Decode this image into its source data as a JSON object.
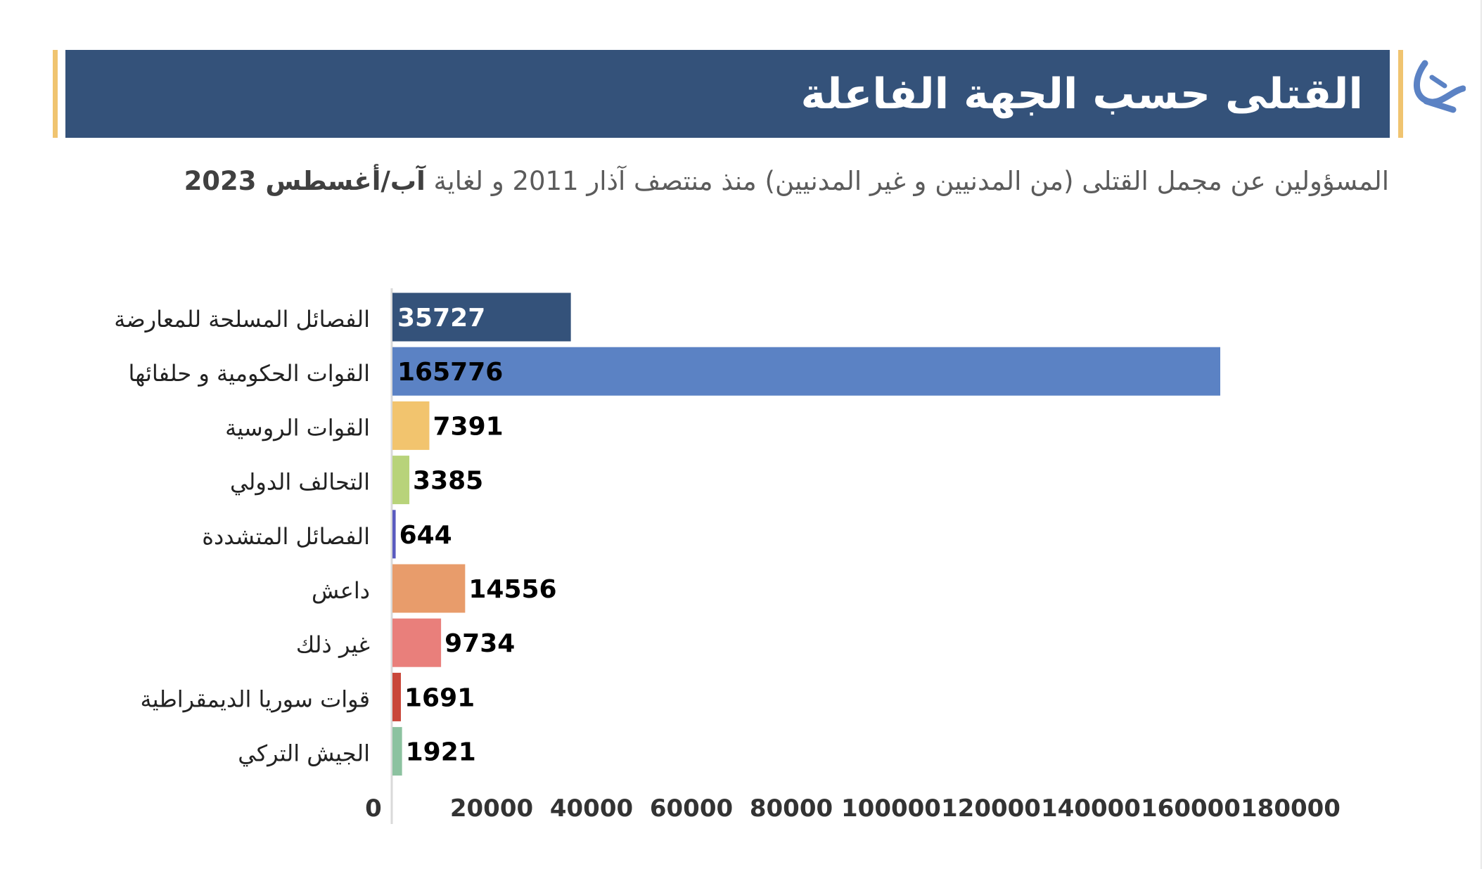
{
  "header": {
    "title": "القتلى حسب الجهة الفاعلة"
  },
  "subtitle": {
    "text": "المسؤولين عن مجمل القتلى (من المدنيين و غير المدنيين) منذ منتصف آذار 2011 و لغاية",
    "bold_text": "آب/أغسطس 2023"
  },
  "colors": {
    "header_bg": "#34527a",
    "accent_gold": "#f0c470",
    "logo_blue": "#5b82c4"
  },
  "chart_data": {
    "type": "bar",
    "orientation": "horizontal",
    "title": "",
    "xlabel": "",
    "ylabel": "",
    "xlim": [
      0,
      180000
    ],
    "x_ticks": [
      0,
      20000,
      40000,
      60000,
      80000,
      100000,
      120000,
      140000,
      160000,
      180000
    ],
    "grid": false,
    "legend": "none",
    "categories": [
      "الفصائل المسلحة للمعارضة",
      "القوات الحكومية و حلفائها",
      "القوات الروسية",
      "التحالف الدولي",
      "الفصائل المتشددة",
      "داعش",
      "غير ذلك",
      "قوات سوريا الديمقراطية",
      "الجيش التركي"
    ],
    "values": [
      35727,
      165776,
      7391,
      3385,
      644,
      14556,
      9734,
      1691,
      1921
    ],
    "bar_colors": [
      "#34527a",
      "#5b82c4",
      "#f2c46e",
      "#b8d37a",
      "#5a5bbf",
      "#e89c6b",
      "#e97f7b",
      "#c9473a",
      "#8cc2a0"
    ],
    "label_colors": [
      "#ffffff",
      "#000000",
      "#000000",
      "#000000",
      "#000000",
      "#000000",
      "#000000",
      "#000000",
      "#000000"
    ]
  }
}
